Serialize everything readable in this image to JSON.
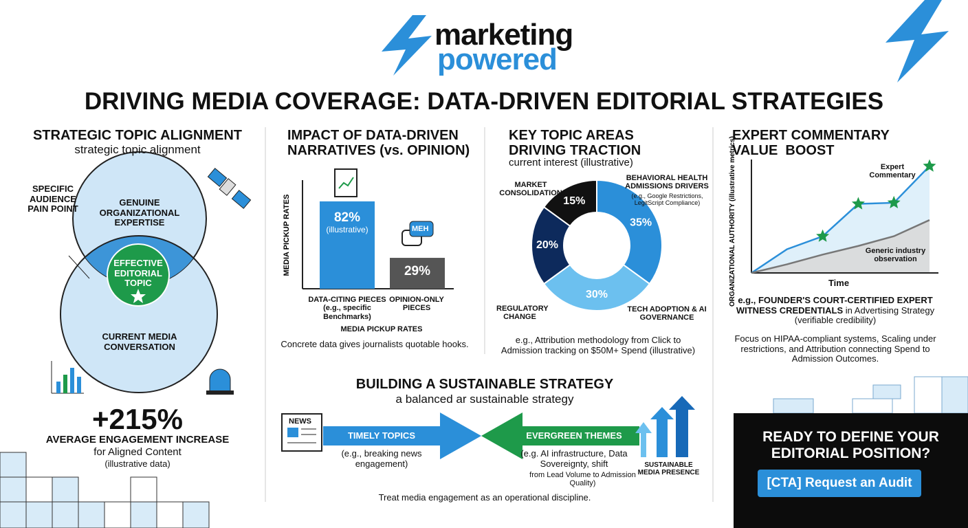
{
  "header": {
    "brand_line1": "marketing",
    "brand_line2": "powered",
    "title": "DRIVING MEDIA COVERAGE: DATA-DRIVEN EDITORIAL STRATEGIES"
  },
  "alignment": {
    "title": "STRATEGIC TOPIC ALIGNMENT",
    "subtitle": "strategic topic alignment",
    "pain_point": "SPECIFIC AUDIENCE PAIN POINT",
    "expertise": "GENUINE ORGANIZATIONAL EXPERTISE",
    "conversation": "CURRENT MEDIA CONVERSATION",
    "center": "EFFECTIVE EDITORIAL TOPIC",
    "stat": "+215%",
    "stat_label": "AVERAGE ENGAGEMENT INCREASE",
    "stat_sub": "for Aligned Content",
    "note": "(illustrative data)"
  },
  "impact": {
    "title": "IMPACT OF DATA-DRIVEN NARRATIVES (vs. OPINION)",
    "bubble": "MEH",
    "chart": {
      "type": "bar",
      "y_label": "MEDIA PICKUP RATES",
      "x_label": "MEDIA PICKUP RATES",
      "categories": [
        "DATA-CITING PIECES (e.g., specific Benchmarks)",
        "OPINION-ONLY PIECES"
      ],
      "values": [
        82,
        29
      ],
      "value_labels": [
        "82%",
        "29%"
      ],
      "bar_note": "(illustrative)",
      "colors": [
        "#2b8fd9",
        "#555555"
      ],
      "ylim": [
        0,
        100
      ]
    },
    "caption": "Concrete data gives journalists quotable hooks."
  },
  "topics": {
    "title": "KEY TOPIC AREAS DRIVING TRACTION",
    "subtitle": "current interest (illustrative)",
    "chart": {
      "type": "pie",
      "categories": [
        "MARKET CONSOLIDATION",
        "BEHAVIORAL HEALTH ADMISSIONS DRIVERS",
        "TECH ADOPTION & AI GOVERNANCE",
        "REGULATORY CHANGE"
      ],
      "values": [
        15,
        35,
        30,
        20
      ],
      "value_labels": [
        "15%",
        "35%",
        "30%",
        "20%"
      ],
      "colors": [
        "#111111",
        "#2b8fd9",
        "#6cc0ef",
        "#0d2a5c"
      ],
      "driver_note": "(e.g., Google Restrictions, LegitScript Compliance)"
    },
    "caption": "e.g., Attribution methodology from Click to Admission tracking on $50M+ Spend (illustrative)"
  },
  "expert": {
    "title": "EXPERT COMMENTARY VALUE  BOOST",
    "chart": {
      "type": "line",
      "y_label": "ORGANIZATIONAL AUTHORITY (illustrative metrics)",
      "x_label": "Time",
      "x": [
        0,
        1,
        2,
        3,
        4,
        5
      ],
      "xlim": [
        0,
        5
      ],
      "ylim": [
        0,
        100
      ],
      "series": [
        {
          "name": "Expert Commentary",
          "color": "#2b8fd9",
          "values": [
            0,
            22,
            34,
            64,
            65,
            99
          ],
          "markers": [
            null,
            null,
            "star",
            "star",
            "star",
            "star"
          ]
        },
        {
          "name": "Generic industry observation",
          "color": "#777777",
          "values": [
            0,
            8,
            17,
            25,
            34,
            49
          ]
        }
      ]
    },
    "credentials_bold": "e.g., FOUNDER'S COURT-CERTIFIED EXPERT WITNESS CREDENTIALS",
    "credentials_rest": "in Advertising Strategy",
    "credentials_note": "(verifiable credibility)",
    "focus": "Focus on HIPAA-compliant systems, Scaling under restrictions, and Attribution connecting Spend to Admission Outcomes."
  },
  "strategy": {
    "title": "BUILDING A SUSTAINABLE STRATEGY",
    "subtitle": "a balanced ar sustainable strategy",
    "news_icon": "NEWS",
    "timely": "TIMELY TOPICS",
    "timely_note": "(e.g., breaking news engagement)",
    "evergreen": "EVERGREEN THEMES",
    "evergreen_note": "(e.g. AI infrastructure, Data Sovereignty, shift",
    "evergreen_note_small": "from Lead Volume to Admission Quality)",
    "result": "SUSTAINABLE MEDIA PRESENCE",
    "caption": "Treat media engagement as an operational discipline."
  },
  "cta": {
    "heading": "READY TO DEFINE YOUR EDITORIAL POSITION?",
    "button": "[CTA] Request an Audit"
  }
}
